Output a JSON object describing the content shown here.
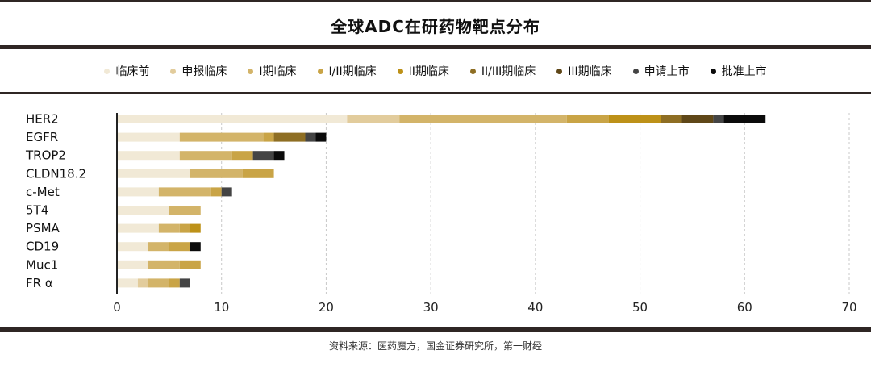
{
  "chart_data": {
    "type": "bar",
    "orientation": "horizontal",
    "stacked": true,
    "title": "全球ADC在研药物靶点分布",
    "xlabel": "",
    "ylabel": "",
    "xlim": [
      0,
      70
    ],
    "xticks": [
      "0",
      "10",
      "20",
      "30",
      "40",
      "50",
      "60",
      "70"
    ],
    "grid": "vertical dashed",
    "legend_position": "top",
    "categories": [
      "HER2",
      "EGFR",
      "TROP2",
      "CLDN18.2",
      "c-Met",
      "5T4",
      "PSMA",
      "CD19",
      "Muc1",
      "FR α"
    ],
    "series": [
      {
        "name": "临床前",
        "color": "#f1e9d6",
        "values": [
          22,
          6,
          6,
          7,
          4,
          5,
          4,
          3,
          3,
          2
        ]
      },
      {
        "name": "申报临床",
        "color": "#e2cc9c",
        "values": [
          5,
          0,
          0,
          0,
          0,
          0,
          0,
          0,
          0,
          1
        ]
      },
      {
        "name": "I期临床",
        "color": "#d3b469",
        "values": [
          16,
          8,
          5,
          5,
          5,
          3,
          2,
          2,
          3,
          2
        ]
      },
      {
        "name": "I/II期临床",
        "color": "#c9a446",
        "values": [
          4,
          1,
          2,
          3,
          1,
          0,
          1,
          2,
          2,
          1
        ]
      },
      {
        "name": "II期临床",
        "color": "#bd9118",
        "values": [
          5,
          0,
          0,
          0,
          0,
          0,
          1,
          0,
          0,
          0
        ]
      },
      {
        "name": "II/III期临床",
        "color": "#8e6e23",
        "values": [
          2,
          3,
          0,
          0,
          0,
          0,
          0,
          0,
          0,
          0
        ]
      },
      {
        "name": "III期临床",
        "color": "#5f4718",
        "values": [
          3,
          0,
          0,
          0,
          0,
          0,
          0,
          0,
          0,
          0
        ]
      },
      {
        "name": "申请上市",
        "color": "#444444",
        "values": [
          1,
          1,
          2,
          0,
          1,
          0,
          0,
          0,
          0,
          1
        ]
      },
      {
        "name": "批准上市",
        "color": "#0b0b0b",
        "values": [
          4,
          1,
          1,
          0,
          0,
          0,
          0,
          1,
          0,
          0
        ]
      }
    ]
  },
  "source": "资料来源：医药魔方，国金证券研究所，第一财经"
}
